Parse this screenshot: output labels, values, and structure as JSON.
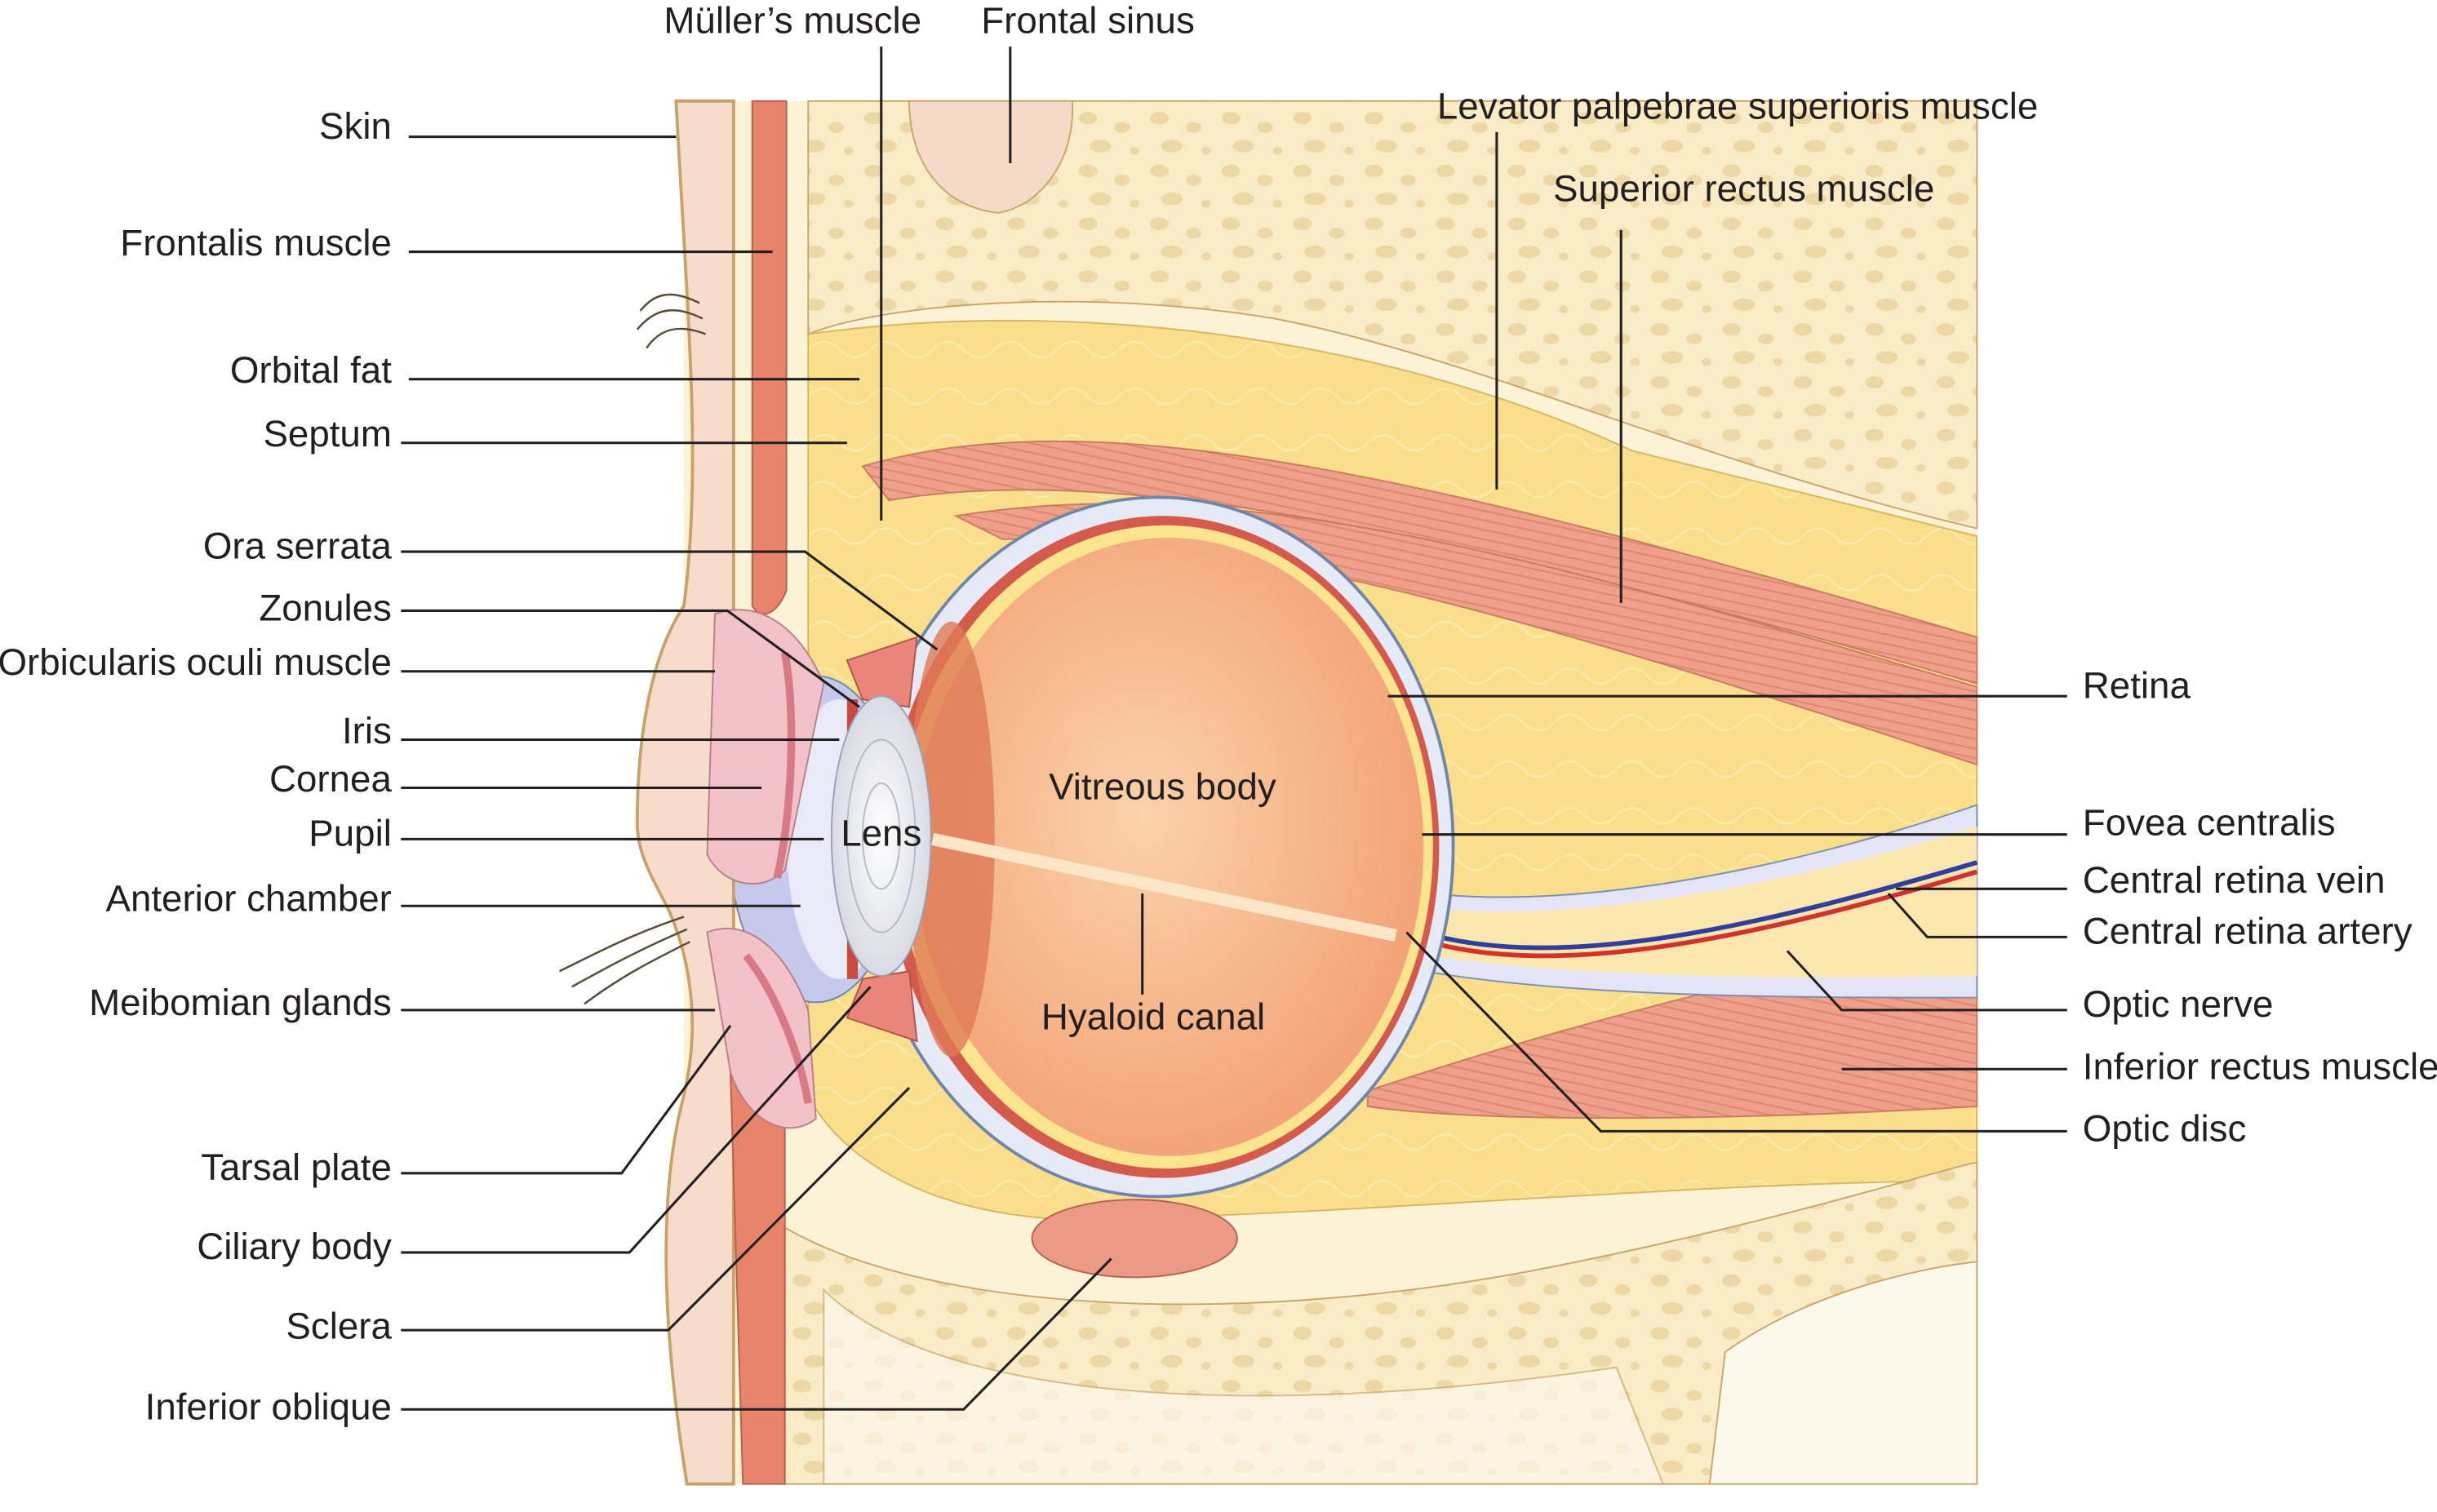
{
  "top_labels": [
    "Müller’s muscle",
    "Frontal sinus",
    "Levator palpebrae superioris muscle",
    "Superior rectus muscle"
  ],
  "left_labels": [
    "Skin",
    "Frontalis muscle",
    "Orbital fat",
    "Septum",
    "Ora serrata",
    "Zonules",
    "Orbicularis oculi muscle",
    "Iris",
    "Cornea",
    "Pupil",
    "Anterior chamber",
    "Meibomian glands",
    "Tarsal plate",
    "Ciliary body",
    "Sclera",
    "Inferior oblique"
  ],
  "right_labels": [
    "Retina",
    "Fovea centralis",
    "Central retina vein",
    "Central retina artery",
    "Optic nerve",
    "Inferior rectus muscle",
    "Optic disc"
  ],
  "inner_labels": [
    "Lens",
    "Vitreous body",
    "Hyaloid canal"
  ]
}
